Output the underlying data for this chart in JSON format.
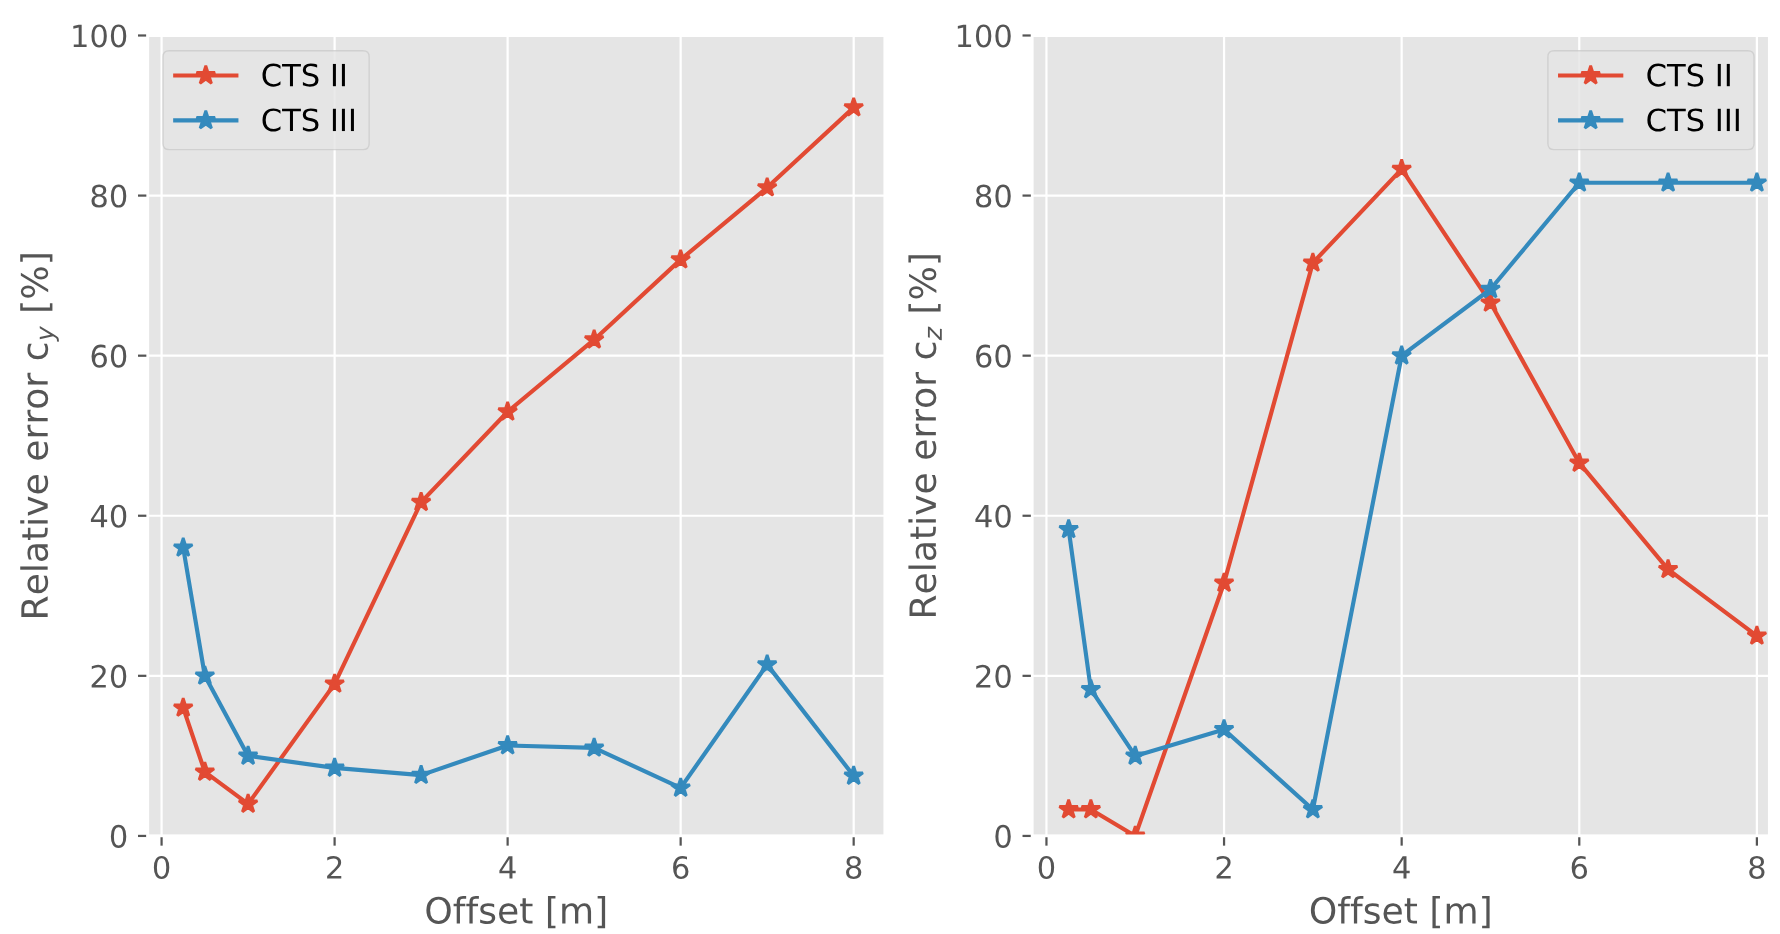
{
  "chart_data": [
    {
      "type": "line",
      "xlabel": "Offset [m]",
      "ylabel": "Relative error c$_{y}$ [%]",
      "x": [
        0.25,
        0.5,
        1,
        2,
        3,
        4,
        5,
        6,
        7,
        8
      ],
      "xlim": [
        -0.16,
        8.36
      ],
      "ylim": [
        0,
        100
      ],
      "xticks": [
        0,
        2,
        4,
        6,
        8
      ],
      "yticks": [
        0,
        20,
        40,
        60,
        80,
        100
      ],
      "grid": true,
      "legend": "top left",
      "marker": "star",
      "line_style": "solid",
      "series": [
        {
          "name": "CTS II",
          "color": "#e24a33",
          "values": [
            16,
            8,
            4,
            19,
            41.7,
            53,
            62,
            72,
            81,
            91
          ]
        },
        {
          "name": "CTS III",
          "color": "#348abd",
          "values": [
            36,
            20,
            10,
            8.5,
            7.6,
            11.3,
            11,
            6,
            21.4,
            7.5
          ]
        }
      ]
    },
    {
      "type": "line",
      "xlabel": "Offset [m]",
      "ylabel": "Relative error c$_{z}$ [%]",
      "x": [
        0.25,
        0.5,
        1,
        2,
        3,
        4,
        5,
        6,
        7,
        8
      ],
      "xlim": [
        -0.16,
        8.14
      ],
      "ylim": [
        0,
        100
      ],
      "xticks": [
        0,
        2,
        4,
        6,
        8
      ],
      "yticks": [
        0,
        20,
        40,
        60,
        80,
        100
      ],
      "grid": true,
      "legend": "top right",
      "marker": "star",
      "line_style": "solid",
      "series": [
        {
          "name": "CTS II",
          "color": "#e24a33",
          "values": [
            3.3,
            3.3,
            0,
            31.6,
            71.6,
            83.3,
            66.6,
            46.6,
            33.3,
            25
          ]
        },
        {
          "name": "CTS III",
          "color": "#348abd",
          "values": [
            38.3,
            18.3,
            10,
            13.3,
            3.3,
            60,
            68.3,
            81.6,
            81.6,
            81.6
          ]
        }
      ]
    }
  ]
}
